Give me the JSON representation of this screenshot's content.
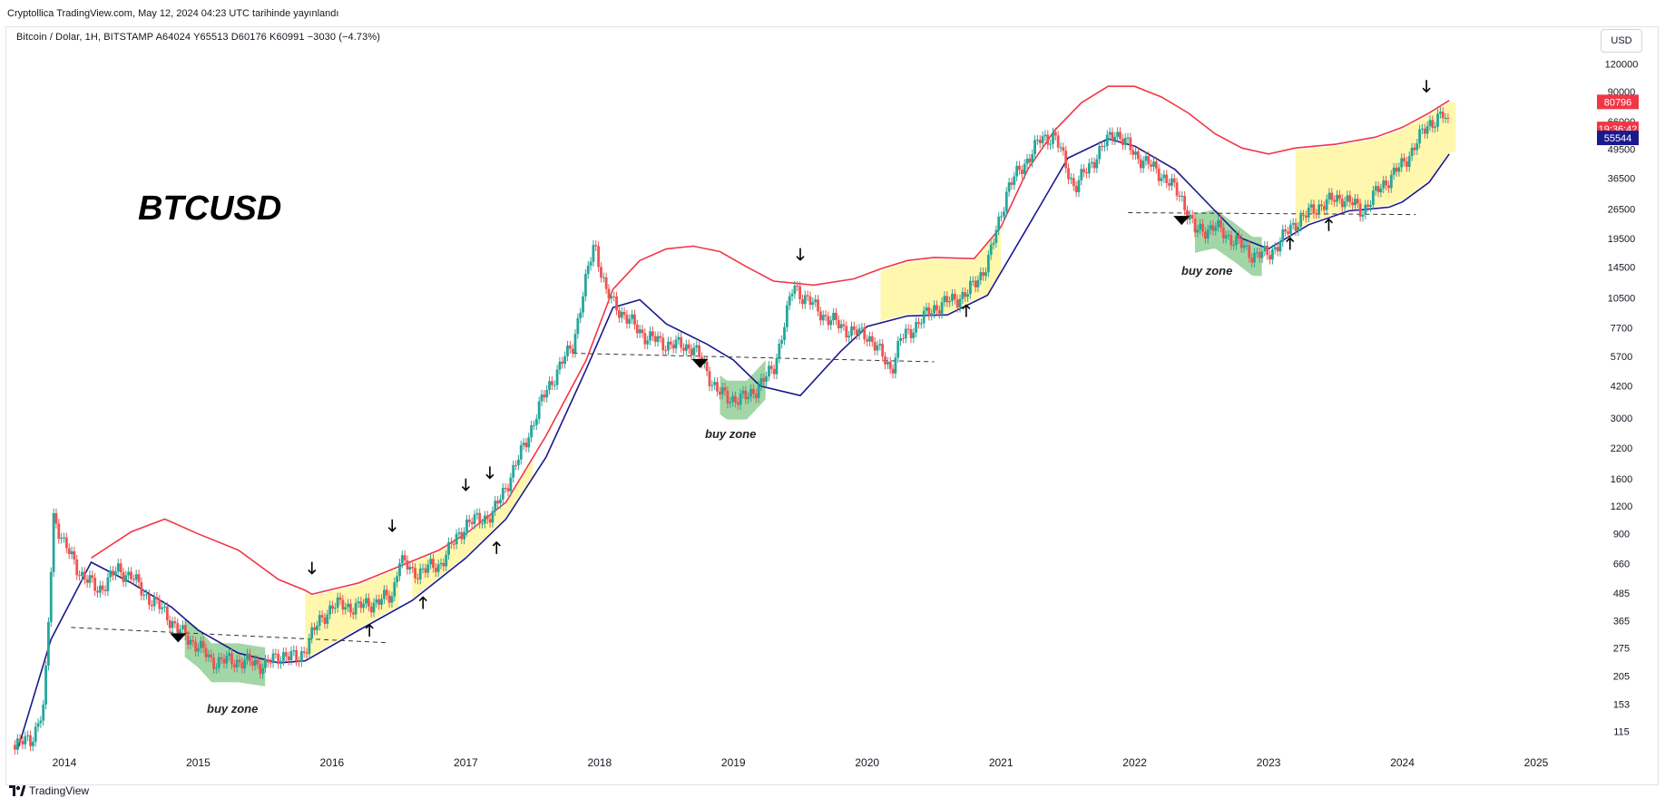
{
  "header": {
    "published": "Cryptollica TradingView.com, May 12, 2024 04:23 UTC tarihinde yayınlandı",
    "legend": "Bitcoin / Dolar, 1H, BITSTAMP  A64024  Y65513  D60176  K60991  −3030 (−4.73%)",
    "currency": "USD"
  },
  "footer": {
    "brand": "TradingView"
  },
  "colors": {
    "up": "#26a69a",
    "down": "#ef5350",
    "upper_band": "#f23645",
    "lower_band": "#1a1a8c",
    "highlight": "#fff176",
    "buy_zone": "#66bb6a"
  },
  "chart_data": {
    "type": "line",
    "title": "BTCUSD",
    "scale": "log",
    "ylim": [
      94,
      130000
    ],
    "xlim": [
      2013.6,
      2025.4
    ],
    "y_ticks": [
      115,
      153,
      205,
      275,
      365,
      485,
      660,
      900,
      1200,
      1600,
      2200,
      3000,
      4200,
      5700,
      7700,
      10500,
      14500,
      19500,
      26500,
      36500,
      49500,
      66000,
      90000,
      120000
    ],
    "x_ticks": [
      "2014",
      "2015",
      "2016",
      "2017",
      "2018",
      "2019",
      "2020",
      "2021",
      "2022",
      "2023",
      "2024",
      "2025"
    ],
    "x_tick_values": [
      2014,
      2015,
      2016,
      2017,
      2018,
      2019,
      2020,
      2021,
      2022,
      2023,
      2024,
      2025
    ],
    "series": [
      {
        "name": "price",
        "x": [
          2013.62,
          2013.75,
          2013.85,
          2013.92,
          2014.0,
          2014.12,
          2014.25,
          2014.4,
          2014.5,
          2014.6,
          2014.75,
          2014.85,
          2015.0,
          2015.1,
          2015.3,
          2015.5,
          2015.65,
          2015.75,
          2015.85,
          2016.0,
          2016.2,
          2016.45,
          2016.5,
          2016.6,
          2016.8,
          2017.0,
          2017.2,
          2017.4,
          2017.6,
          2017.8,
          2017.96,
          2018.05,
          2018.2,
          2018.35,
          2018.5,
          2018.7,
          2018.88,
          2018.95,
          2019.1,
          2019.3,
          2019.45,
          2019.5,
          2019.7,
          2019.9,
          2020.0,
          2020.18,
          2020.25,
          2020.5,
          2020.75,
          2020.9,
          2021.05,
          2021.3,
          2021.4,
          2021.55,
          2021.7,
          2021.85,
          2022.0,
          2022.2,
          2022.35,
          2022.45,
          2022.6,
          2022.75,
          2022.88,
          2023.0,
          2023.2,
          2023.4,
          2023.55,
          2023.7,
          2023.85,
          2024.0,
          2024.2,
          2024.3,
          2024.36
        ],
        "y": [
          100,
          105,
          150,
          1100,
          800,
          600,
          500,
          620,
          580,
          480,
          400,
          330,
          280,
          240,
          240,
          230,
          260,
          240,
          320,
          430,
          420,
          470,
          700,
          600,
          650,
          1000,
          1100,
          2000,
          4000,
          6500,
          19000,
          11000,
          8500,
          7000,
          6500,
          6300,
          4000,
          3700,
          3700,
          5000,
          12000,
          11000,
          8500,
          7300,
          7200,
          5000,
          6800,
          9500,
          11000,
          15000,
          33000,
          55000,
          57000,
          33000,
          45000,
          60000,
          47000,
          38000,
          30000,
          21000,
          22000,
          19000,
          16500,
          16500,
          23000,
          28000,
          30000,
          26000,
          34000,
          42000,
          65000,
          70000,
          61000
        ]
      },
      {
        "name": "upper band",
        "x": [
          2014.2,
          2014.5,
          2014.75,
          2015.0,
          2015.3,
          2015.6,
          2015.8,
          2015.85,
          2016.2,
          2016.5,
          2016.8,
          2017.0,
          2017.3,
          2017.6,
          2017.9,
          2018.1,
          2018.3,
          2018.5,
          2018.7,
          2018.9,
          2019.1,
          2019.3,
          2019.6,
          2019.9,
          2020.1,
          2020.3,
          2020.5,
          2020.8,
          2021.0,
          2021.2,
          2021.4,
          2021.6,
          2021.8,
          2022.0,
          2022.2,
          2022.4,
          2022.6,
          2022.8,
          2023.0,
          2023.2,
          2023.5,
          2023.8,
          2024.0,
          2024.2,
          2024.35
        ],
        "y": [
          700,
          920,
          1050,
          900,
          760,
          560,
          500,
          480,
          540,
          640,
          760,
          900,
          1250,
          2500,
          5500,
          11500,
          15500,
          17500,
          18000,
          17000,
          14500,
          12500,
          12000,
          12800,
          14200,
          15500,
          16000,
          15800,
          22000,
          40000,
          60000,
          80000,
          95000,
          95000,
          85000,
          72000,
          58000,
          50000,
          47000,
          50000,
          52000,
          56000,
          62000,
          72000,
          82000
        ]
      },
      {
        "name": "lower band",
        "x": [
          2013.65,
          2013.9,
          2014.2,
          2014.5,
          2014.8,
          2015.0,
          2015.3,
          2015.6,
          2015.8,
          2016.2,
          2016.6,
          2017.0,
          2017.3,
          2017.6,
          2017.9,
          2018.1,
          2018.3,
          2018.5,
          2018.8,
          2019.0,
          2019.2,
          2019.5,
          2019.8,
          2020.0,
          2020.3,
          2020.6,
          2020.9,
          2021.2,
          2021.5,
          2021.8,
          2022.0,
          2022.3,
          2022.6,
          2022.8,
          2023.0,
          2023.3,
          2023.6,
          2023.9,
          2024.0,
          2024.2,
          2024.35
        ],
        "y": [
          95,
          300,
          670,
          540,
          420,
          330,
          260,
          235,
          240,
          330,
          450,
          700,
          1050,
          2000,
          5000,
          9500,
          10300,
          8000,
          6500,
          5500,
          4200,
          3800,
          6000,
          7800,
          8700,
          8800,
          10800,
          22000,
          45000,
          55000,
          51000,
          40000,
          26000,
          19500,
          17500,
          22500,
          26000,
          27000,
          28500,
          35000,
          47000
        ]
      }
    ],
    "annotations": [
      "buy zone",
      "buy zone",
      "buy zone"
    ],
    "price_labels": [
      {
        "label": "80796",
        "value": 80796,
        "color": "#f23645"
      },
      {
        "label": "19:36:42",
        "value": 61000,
        "color": "#f23645"
      },
      {
        "label": "55544",
        "value": 55544,
        "color": "#1a1a8c"
      }
    ]
  }
}
